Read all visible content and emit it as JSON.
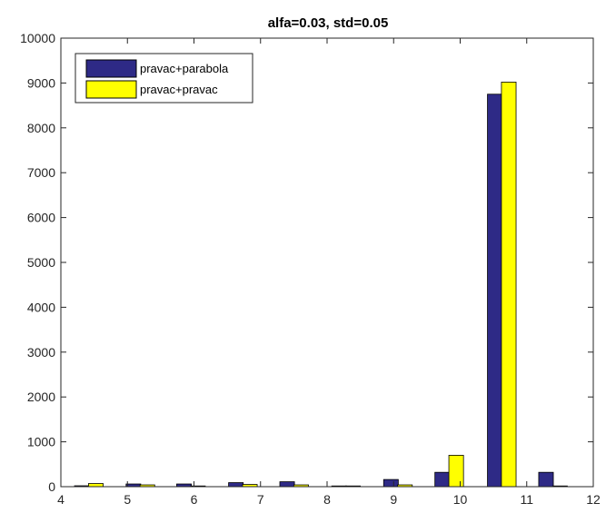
{
  "chart_data": {
    "type": "bar",
    "title": "alfa=0.03, std=0.05",
    "xlabel": "",
    "ylabel": "",
    "xlim": [
      4,
      12
    ],
    "ylim": [
      0,
      10000
    ],
    "x_ticks": [
      4,
      5,
      6,
      7,
      8,
      9,
      10,
      11,
      12
    ],
    "y_ticks": [
      0,
      1000,
      2000,
      3000,
      4000,
      5000,
      6000,
      7000,
      8000,
      9000,
      10000
    ],
    "legend_position": "top-left",
    "grid": false,
    "bar_width": 0.22,
    "series": [
      {
        "name": "pravac+parabola",
        "color": "#2e2a86",
        "x": [
          4.315,
          5.09,
          5.85,
          6.63,
          7.4,
          8.18,
          8.96,
          9.73,
          10.52,
          11.29
        ],
        "values": [
          20,
          60,
          60,
          90,
          110,
          10,
          160,
          320,
          8750,
          320
        ]
      },
      {
        "name": "pravac+pravac",
        "color": "#ffff00",
        "x": [
          4.525,
          5.3,
          6.06,
          6.84,
          7.61,
          8.39,
          9.17,
          9.94,
          10.73,
          11.5
        ],
        "values": [
          70,
          40,
          15,
          50,
          40,
          5,
          40,
          700,
          9020,
          10
        ]
      }
    ]
  }
}
